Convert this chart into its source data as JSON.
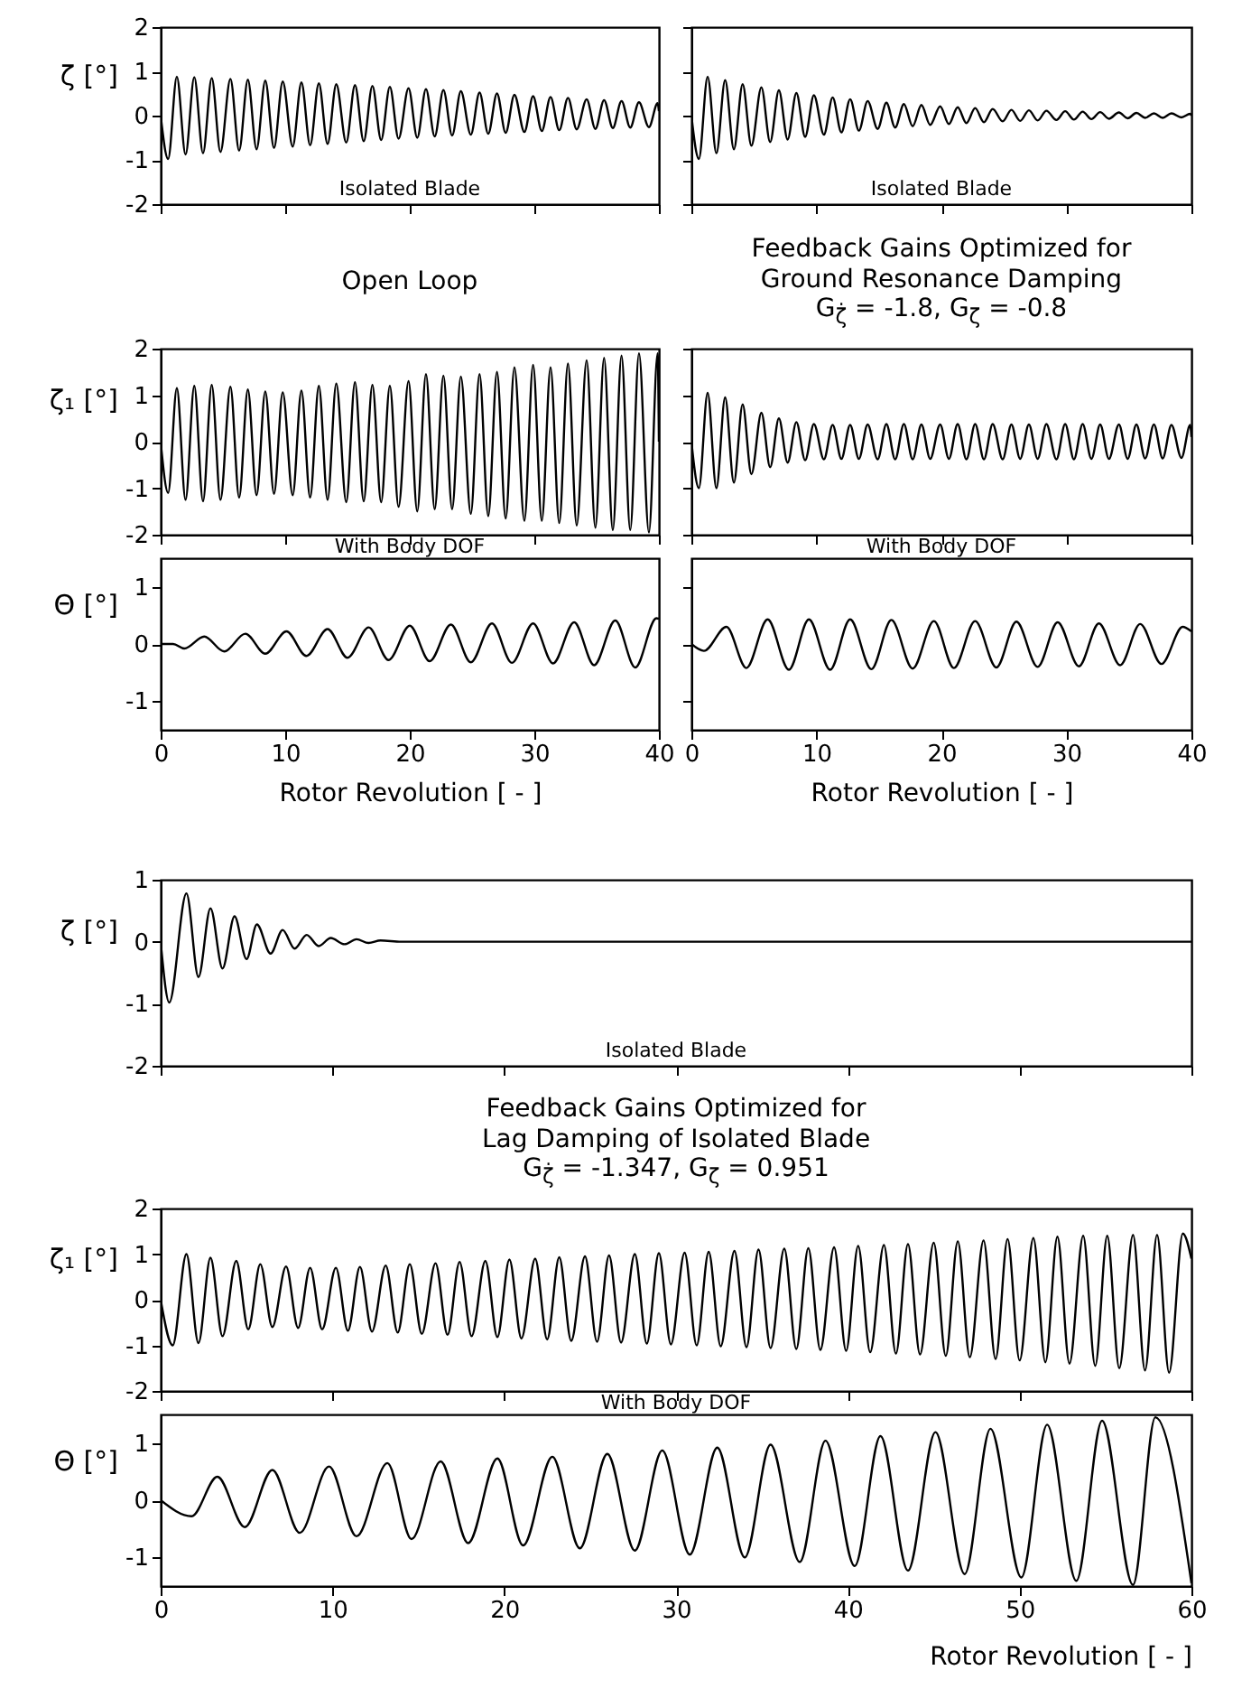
{
  "chart_data": [
    {
      "type": "line",
      "ylabel": "ζ [°]",
      "annotations": [
        "Isolated Blade"
      ],
      "color": "#000000",
      "xlim": [
        0,
        40
      ],
      "ylim": [
        -2,
        2
      ],
      "xticks": [
        0,
        10,
        20,
        30,
        40
      ],
      "yticks": [
        -2,
        -1,
        0,
        1,
        2
      ],
      "tick_labels": "y",
      "x": [
        0,
        0.6,
        1.3,
        2.0,
        2.7,
        3.4,
        4.1,
        4.8,
        5.6,
        6.3,
        7.0,
        7.7,
        8.4,
        9.1,
        9.8,
        10.6,
        11.3,
        12.0,
        12.7,
        13.4,
        14.1,
        14.9,
        15.6,
        16.3,
        17.0,
        17.7,
        18.4,
        19.1,
        19.9,
        20.6,
        21.3,
        22.0,
        22.7,
        23.4,
        24.1,
        24.9,
        25.6,
        26.3,
        27.0,
        27.7,
        28.4,
        29.2,
        29.9,
        30.6,
        31.3,
        32.0,
        32.7,
        33.4,
        34.2,
        34.9,
        35.6,
        36.3,
        37.0,
        37.7,
        38.4,
        39.2,
        39.9,
        40
      ],
      "values": [
        0,
        -0.98,
        0.88,
        -0.88,
        0.87,
        -0.85,
        0.85,
        -0.82,
        0.83,
        -0.79,
        0.81,
        -0.76,
        0.79,
        -0.73,
        0.77,
        -0.7,
        0.75,
        -0.67,
        0.73,
        -0.64,
        0.71,
        -0.61,
        0.69,
        -0.58,
        0.67,
        -0.55,
        0.65,
        -0.52,
        0.62,
        -0.5,
        0.6,
        -0.47,
        0.58,
        -0.45,
        0.55,
        -0.43,
        0.52,
        -0.41,
        0.5,
        -0.39,
        0.47,
        -0.37,
        0.44,
        -0.35,
        0.42,
        -0.33,
        0.4,
        -0.31,
        0.37,
        -0.3,
        0.35,
        -0.28,
        0.33,
        -0.27,
        0.3,
        -0.26,
        0.28,
        0.1
      ]
    },
    {
      "type": "line",
      "annotations": [
        "Isolated Blade"
      ],
      "color": "#000000",
      "xlim": [
        0,
        40
      ],
      "ylim": [
        -2,
        2
      ],
      "xticks": [
        0,
        10,
        20,
        30,
        40
      ],
      "yticks": [
        -2,
        -1,
        0,
        1,
        2
      ],
      "tick_labels": false,
      "x": [
        0,
        0.6,
        1.3,
        2.0,
        2.7,
        3.4,
        4.1,
        4.8,
        5.6,
        6.3,
        7.0,
        7.7,
        8.4,
        9.1,
        9.8,
        10.6,
        11.3,
        12.0,
        12.7,
        13.4,
        14.1,
        14.9,
        15.6,
        16.3,
        17.0,
        17.7,
        18.4,
        19.1,
        19.9,
        20.6,
        21.3,
        22.0,
        22.7,
        23.4,
        24.1,
        24.9,
        25.6,
        26.3,
        27.0,
        27.7,
        28.4,
        29.2,
        29.9,
        30.6,
        31.3,
        32.0,
        32.7,
        33.4,
        34.2,
        34.9,
        35.6,
        36.3,
        37.0,
        37.7,
        38.4,
        39.2,
        39.9,
        40
      ],
      "values": [
        0,
        -0.98,
        0.88,
        -0.85,
        0.8,
        -0.76,
        0.71,
        -0.68,
        0.64,
        -0.6,
        0.57,
        -0.54,
        0.51,
        -0.48,
        0.46,
        -0.43,
        0.41,
        -0.38,
        0.37,
        -0.34,
        0.33,
        -0.3,
        0.29,
        -0.27,
        0.26,
        -0.24,
        0.24,
        -0.21,
        0.21,
        -0.19,
        0.19,
        -0.17,
        0.17,
        -0.15,
        0.15,
        -0.13,
        0.13,
        -0.12,
        0.12,
        -0.11,
        0.11,
        -0.1,
        0.1,
        -0.09,
        0.09,
        -0.08,
        0.08,
        -0.07,
        0.07,
        -0.06,
        0.06,
        -0.05,
        0.05,
        -0.05,
        0.05,
        -0.04,
        0.04,
        0
      ]
    },
    {
      "type": "line",
      "title": "Open Loop",
      "ylabel": "ζ₁ [°]",
      "color": "#000000",
      "xlim": [
        0,
        40
      ],
      "ylim": [
        -2,
        2
      ],
      "xticks": [
        0,
        10,
        20,
        30,
        40
      ],
      "yticks": [
        -2,
        -1,
        0,
        1,
        2
      ],
      "tick_labels": "y",
      "x": [
        0,
        0.6,
        1.3,
        2.0,
        2.7,
        3.4,
        4.1,
        4.8,
        5.6,
        6.3,
        7.0,
        7.7,
        8.4,
        9.1,
        9.8,
        10.6,
        11.3,
        12.0,
        12.7,
        13.4,
        14.1,
        14.9,
        15.6,
        16.3,
        17.0,
        17.7,
        18.4,
        19.1,
        19.9,
        20.6,
        21.3,
        22.0,
        22.7,
        23.4,
        24.1,
        24.9,
        25.6,
        26.3,
        27.0,
        27.7,
        28.4,
        29.2,
        29.9,
        30.6,
        31.3,
        32.0,
        32.7,
        33.4,
        34.2,
        34.9,
        35.6,
        36.3,
        37.0,
        37.7,
        38.4,
        39.2,
        39.9,
        40
      ],
      "values": [
        0,
        -1.1,
        1.15,
        -1.25,
        1.2,
        -1.28,
        1.22,
        -1.25,
        1.18,
        -1.2,
        1.12,
        -1.15,
        1.08,
        -1.12,
        1.06,
        -1.15,
        1.1,
        -1.2,
        1.2,
        -1.25,
        1.25,
        -1.3,
        1.28,
        -1.28,
        1.22,
        -1.3,
        1.2,
        -1.4,
        1.3,
        -1.5,
        1.45,
        -1.45,
        1.42,
        -1.45,
        1.4,
        -1.55,
        1.45,
        -1.6,
        1.5,
        -1.65,
        1.6,
        -1.7,
        1.65,
        -1.7,
        1.6,
        -1.75,
        1.68,
        -1.8,
        1.75,
        -1.85,
        1.8,
        -1.9,
        1.85,
        -1.9,
        1.9,
        -1.95,
        1.9,
        0
      ]
    },
    {
      "type": "line",
      "title": "Feedback Gains Optimized for\nGround Resonance Damping\nG$_{ζ̇}$ = -1.8, G$_{ζ}$ = -0.8",
      "color": "#000000",
      "xlim": [
        0,
        40
      ],
      "ylim": [
        -2,
        2
      ],
      "xticks": [
        0,
        10,
        20,
        30,
        40
      ],
      "yticks": [
        -2,
        -1,
        0,
        1,
        2
      ],
      "tick_labels": false,
      "x": [
        0,
        0.6,
        1.3,
        2.0,
        2.7,
        3.4,
        4.1,
        4.8,
        5.6,
        6.3,
        7.0,
        7.7,
        8.4,
        9.1,
        9.8,
        10.6,
        11.3,
        12.0,
        12.7,
        13.4,
        14.1,
        14.9,
        15.6,
        16.3,
        17.0,
        17.7,
        18.4,
        19.1,
        19.9,
        20.6,
        21.3,
        22.0,
        22.7,
        23.4,
        24.1,
        24.9,
        25.6,
        26.3,
        27.0,
        27.7,
        28.4,
        29.2,
        29.9,
        30.6,
        31.3,
        32.0,
        32.7,
        33.4,
        34.2,
        34.9,
        35.6,
        36.3,
        37.0,
        37.7,
        38.4,
        39.2,
        39.9,
        40
      ],
      "values": [
        0,
        -1.0,
        1.05,
        -1.0,
        0.95,
        -0.88,
        0.8,
        -0.7,
        0.62,
        -0.55,
        0.5,
        -0.45,
        0.42,
        -0.4,
        0.38,
        -0.38,
        0.36,
        -0.37,
        0.36,
        -0.37,
        0.37,
        -0.38,
        0.38,
        -0.38,
        0.38,
        -0.38,
        0.37,
        -0.37,
        0.37,
        -0.37,
        0.38,
        -0.38,
        0.38,
        -0.38,
        0.38,
        -0.38,
        0.37,
        -0.37,
        0.37,
        -0.37,
        0.38,
        -0.38,
        0.38,
        -0.38,
        0.38,
        -0.37,
        0.37,
        -0.37,
        0.37,
        -0.37,
        0.37,
        -0.36,
        0.37,
        -0.36,
        0.36,
        -0.35,
        0.36,
        0.1
      ]
    },
    {
      "type": "line",
      "xlabel": "Rotor Revolution [ - ]",
      "ylabel": "Θ [°]",
      "annotations": [
        "With Body DOF"
      ],
      "color": "#000000",
      "xlim": [
        0,
        40
      ],
      "ylim": [
        -1.5,
        1.5
      ],
      "xticks": [
        0,
        10,
        20,
        30,
        40
      ],
      "yticks": [
        -1,
        0,
        1
      ],
      "x": [
        0,
        1.0,
        1.9,
        3.5,
        5.1,
        6.8,
        8.4,
        10.1,
        11.7,
        13.4,
        15.0,
        16.7,
        18.3,
        20.0,
        21.6,
        23.3,
        24.9,
        26.6,
        28.2,
        29.9,
        31.5,
        33.2,
        34.8,
        36.5,
        38.1,
        39.8,
        40
      ],
      "values": [
        0,
        0,
        -0.08,
        0.13,
        -0.13,
        0.18,
        -0.17,
        0.22,
        -0.21,
        0.26,
        -0.24,
        0.29,
        -0.28,
        0.32,
        -0.3,
        0.34,
        -0.32,
        0.36,
        -0.33,
        0.36,
        -0.34,
        0.38,
        -0.37,
        0.41,
        -0.41,
        0.45,
        0.44
      ]
    },
    {
      "type": "line",
      "xlabel": "Rotor Revolution [ - ]",
      "annotations": [
        "With Body DOF"
      ],
      "color": "#000000",
      "xlim": [
        0,
        40
      ],
      "ylim": [
        -1.5,
        1.5
      ],
      "xticks": [
        0,
        10,
        20,
        30,
        40
      ],
      "yticks": [
        -1,
        0,
        1
      ],
      "tick_labels": "x",
      "x": [
        0,
        1.0,
        2.8,
        4.4,
        6.1,
        7.8,
        9.4,
        11.1,
        12.7,
        14.4,
        16.0,
        17.7,
        19.4,
        21.0,
        22.7,
        24.4,
        26.0,
        27.7,
        29.3,
        31.0,
        32.6,
        34.3,
        35.9,
        37.6,
        39.3,
        40
      ],
      "values": [
        0,
        -0.12,
        0.3,
        -0.42,
        0.43,
        -0.45,
        0.43,
        -0.45,
        0.43,
        -0.44,
        0.42,
        -0.43,
        0.4,
        -0.42,
        0.4,
        -0.41,
        0.39,
        -0.4,
        0.38,
        -0.39,
        0.36,
        -0.37,
        0.35,
        -0.35,
        0.3,
        0.22
      ]
    },
    {
      "type": "line",
      "ylabel": "ζ [°]",
      "annotations": [
        "Isolated Blade"
      ],
      "color": "#000000",
      "xlim": [
        0,
        60
      ],
      "ylim": [
        -2,
        1
      ],
      "xticks": [
        0,
        10,
        20,
        30,
        40,
        50,
        60
      ],
      "yticks": [
        -2,
        -1,
        0,
        1
      ],
      "tick_labels": "y",
      "x": [
        0,
        0.5,
        1.5,
        2.2,
        2.9,
        3.6,
        4.3,
        5.0,
        5.6,
        6.4,
        7.1,
        7.8,
        8.5,
        9.2,
        9.9,
        10.7,
        11.4,
        12.1,
        12.8,
        14,
        60
      ],
      "values": [
        0,
        -0.98,
        0.78,
        -0.57,
        0.54,
        -0.43,
        0.41,
        -0.28,
        0.28,
        -0.19,
        0.19,
        -0.11,
        0.11,
        -0.07,
        0.06,
        -0.04,
        0.04,
        -0.02,
        0.02,
        0,
        0
      ]
    },
    {
      "type": "line",
      "title": "Feedback Gains Optimized for\nLag Damping of Isolated Blade\nG$_{ζ̇}$ = -1.347, G$_{ζ}$ = 0.951",
      "ylabel": "ζ₁ [°]",
      "color": "#000000",
      "xlim": [
        0,
        60
      ],
      "ylim": [
        -2,
        2
      ],
      "xticks": [
        0,
        10,
        20,
        30,
        40,
        50,
        60
      ],
      "yticks": [
        -2,
        -1,
        0,
        1,
        2
      ],
      "tick_labels": "y",
      "x": [
        0,
        0.7,
        1.5,
        2.2,
        2.9,
        3.6,
        4.4,
        5.1,
        5.8,
        6.5,
        7.3,
        8.0,
        8.7,
        9.4,
        10.2,
        10.9,
        11.6,
        12.3,
        13.1,
        13.8,
        14.5,
        15.2,
        16.0,
        16.7,
        17.4,
        18.1,
        18.9,
        19.6,
        20.3,
        21.0,
        21.8,
        22.5,
        23.2,
        23.9,
        24.7,
        25.4,
        26.1,
        26.8,
        27.6,
        28.3,
        29.0,
        29.7,
        30.5,
        31.2,
        31.9,
        32.6,
        33.4,
        34.1,
        34.8,
        35.5,
        36.3,
        37.0,
        37.7,
        38.4,
        39.2,
        39.9,
        40.6,
        41.3,
        42.1,
        42.8,
        43.5,
        44.2,
        45.0,
        45.7,
        46.4,
        47.1,
        47.9,
        48.6,
        49.3,
        50.0,
        50.8,
        51.5,
        52.2,
        52.9,
        53.7,
        54.4,
        55.1,
        55.8,
        56.6,
        57.3,
        58.0,
        58.7,
        59.5,
        60
      ],
      "values": [
        0,
        -1.0,
        1.0,
        -0.95,
        0.92,
        -0.8,
        0.85,
        -0.65,
        0.78,
        -0.6,
        0.73,
        -0.62,
        0.7,
        -0.65,
        0.7,
        -0.68,
        0.72,
        -0.7,
        0.75,
        -0.72,
        0.78,
        -0.75,
        0.8,
        -0.77,
        0.83,
        -0.8,
        0.85,
        -0.82,
        0.88,
        -0.85,
        0.9,
        -0.87,
        0.93,
        -0.9,
        0.95,
        -0.92,
        0.97,
        -0.94,
        1.0,
        -0.96,
        1.02,
        -0.98,
        1.03,
        -1.0,
        1.05,
        -1.02,
        1.07,
        -1.04,
        1.1,
        -1.06,
        1.12,
        -1.08,
        1.13,
        -1.1,
        1.15,
        -1.12,
        1.18,
        -1.15,
        1.2,
        -1.18,
        1.22,
        -1.2,
        1.25,
        -1.23,
        1.28,
        -1.26,
        1.3,
        -1.3,
        1.33,
        -1.33,
        1.35,
        -1.37,
        1.38,
        -1.4,
        1.4,
        -1.45,
        1.4,
        -1.5,
        1.42,
        -1.55,
        1.42,
        -1.6,
        1.45,
        0.9
      ]
    },
    {
      "type": "line",
      "xlabel": "Rotor Revolution [ - ]",
      "ylabel": "Θ [°]",
      "annotations": [
        "With Body DOF"
      ],
      "color": "#000000",
      "xlim": [
        0,
        60
      ],
      "ylim": [
        -1.5,
        1.5
      ],
      "xticks": [
        0,
        10,
        20,
        30,
        40,
        50,
        60
      ],
      "yticks": [
        -1,
        0,
        1
      ],
      "x": [
        0,
        1.8,
        3.3,
        4.9,
        6.5,
        8.1,
        9.8,
        11.4,
        13.2,
        14.6,
        16.3,
        17.9,
        19.6,
        21.1,
        22.8,
        24.4,
        26.0,
        27.6,
        29.2,
        30.8,
        32.4,
        34.0,
        35.5,
        37.2,
        38.7,
        40.4,
        41.9,
        43.5,
        45.1,
        46.8,
        48.3,
        50.1,
        51.6,
        53.3,
        54.8,
        56.6,
        57.9,
        60
      ],
      "values": [
        0,
        -0.28,
        0.41,
        -0.47,
        0.53,
        -0.57,
        0.59,
        -0.63,
        0.65,
        -0.68,
        0.68,
        -0.75,
        0.73,
        -0.79,
        0.76,
        -0.84,
        0.81,
        -0.88,
        0.87,
        -0.95,
        0.92,
        -1.0,
        0.97,
        -1.08,
        1.04,
        -1.15,
        1.12,
        -1.23,
        1.19,
        -1.29,
        1.25,
        -1.35,
        1.32,
        -1.41,
        1.39,
        -1.48,
        1.45,
        -1.45
      ]
    }
  ]
}
